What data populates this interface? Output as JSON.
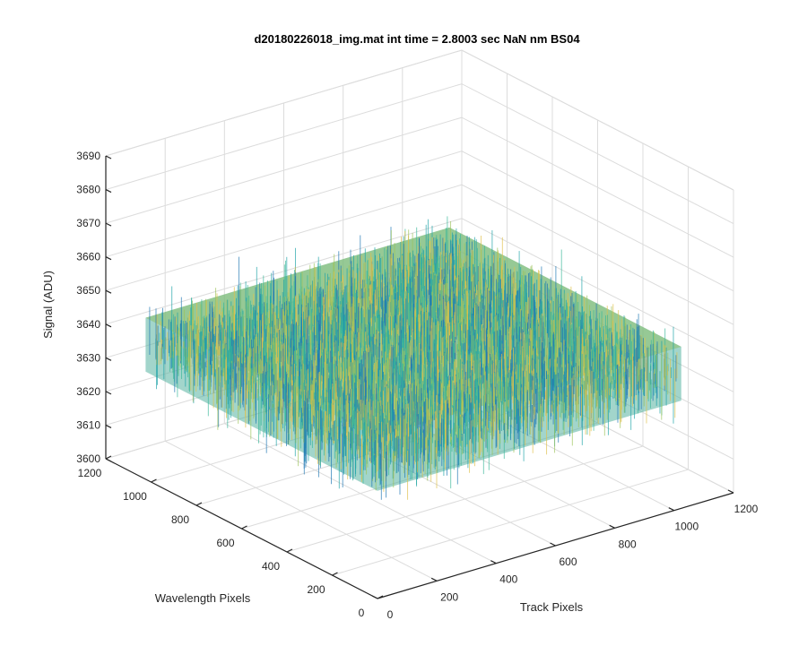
{
  "chart_data": {
    "type": "surface",
    "title": "d20180226018_img.mat int time = 2.8003 sec  NaN nm BS04",
    "xlabel": "Track Pixels",
    "ylabel": "Wavelength Pixels",
    "zlabel": "Signal (ADU)",
    "xlim": [
      0,
      1200
    ],
    "ylim": [
      0,
      1200
    ],
    "zlim": [
      3600,
      3690
    ],
    "x_ticks": [
      "0",
      "200",
      "400",
      "600",
      "800",
      "1000",
      "1200"
    ],
    "y_ticks": [
      "0",
      "200",
      "400",
      "600",
      "800",
      "1000",
      "1200"
    ],
    "z_ticks": [
      "3600",
      "3610",
      "3620",
      "3630",
      "3640",
      "3650",
      "3660",
      "3670",
      "3680",
      "3690"
    ],
    "surface_extent": {
      "x": [
        0,
        1024
      ],
      "y": [
        0,
        1024
      ]
    },
    "signal_mean": 3640,
    "signal_range": [
      3610,
      3675
    ],
    "grid": true,
    "colormap": [
      "#1f77b4",
      "#1fa3a8",
      "#3cb89a",
      "#9cc35a",
      "#e0c04a"
    ]
  }
}
